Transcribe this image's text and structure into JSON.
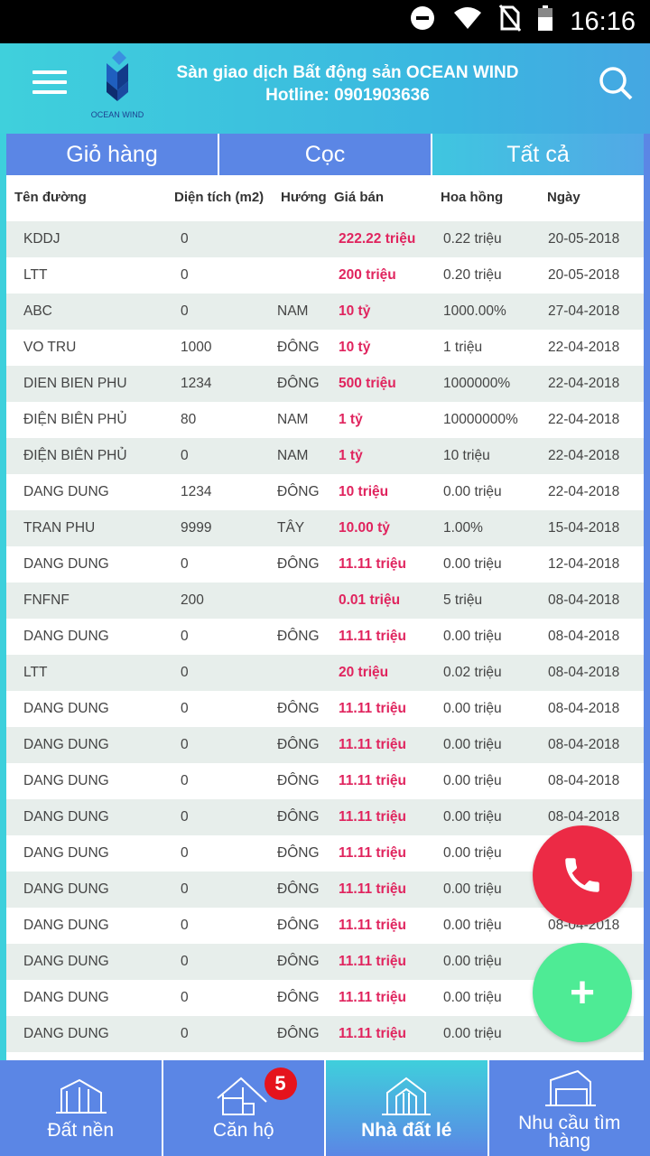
{
  "status": {
    "time": "16:16"
  },
  "header": {
    "title": "Sàn giao dịch Bất động sản OCEAN WIND",
    "hotline": "Hotline: 0901903636",
    "logo_text": "OCEAN WIND"
  },
  "tabs": [
    {
      "label": "Giỏ hàng"
    },
    {
      "label": "Cọc"
    },
    {
      "label": "Tất cả",
      "active": true
    }
  ],
  "table": {
    "headers": [
      "Tên đường",
      "Diện tích (m2)",
      "Hướng",
      "Giá bán",
      "Hoa hồng",
      "Ngày"
    ],
    "rows": [
      [
        "KDDJ",
        "0",
        "",
        "222.22 triệu",
        "0.22 triệu",
        "20-05-2018"
      ],
      [
        "LTT",
        "0",
        "",
        "200 triệu",
        "0.20 triệu",
        "20-05-2018"
      ],
      [
        "ABC",
        "0",
        "NAM",
        "10 tỷ",
        "1000.00%",
        "27-04-2018"
      ],
      [
        "VO TRU",
        "1000",
        "ĐÔNG",
        "10 tỷ",
        "1 triệu",
        "22-04-2018"
      ],
      [
        "DIEN BIEN PHU",
        "1234",
        "ĐÔNG",
        "500 triệu",
        "1000000%",
        "22-04-2018"
      ],
      [
        "ĐIỆN BIÊN PHỦ",
        "80",
        "NAM",
        "1 tỷ",
        "10000000%",
        "22-04-2018"
      ],
      [
        "ĐIỆN BIÊN PHỦ",
        "0",
        "NAM",
        "1 tỷ",
        "10 triệu",
        "22-04-2018"
      ],
      [
        "DANG DUNG",
        "1234",
        "ĐÔNG",
        "10 triệu",
        "0.00 triệu",
        "22-04-2018"
      ],
      [
        "TRAN PHU",
        "9999",
        "TÂY",
        "10.00 tỷ",
        "1.00%",
        "15-04-2018"
      ],
      [
        "DANG DUNG",
        "0",
        "ĐÔNG",
        "11.11 triệu",
        "0.00 triệu",
        "12-04-2018"
      ],
      [
        "FNFNF",
        "200",
        "",
        "0.01 triệu",
        "5 triệu",
        "08-04-2018"
      ],
      [
        "DANG DUNG",
        "0",
        "ĐÔNG",
        "11.11 triệu",
        "0.00 triệu",
        "08-04-2018"
      ],
      [
        "LTT",
        "0",
        "",
        "20 triệu",
        "0.02 triệu",
        "08-04-2018"
      ],
      [
        "DANG DUNG",
        "0",
        "ĐÔNG",
        "11.11 triệu",
        "0.00 triệu",
        "08-04-2018"
      ],
      [
        "DANG DUNG",
        "0",
        "ĐÔNG",
        "11.11 triệu",
        "0.00 triệu",
        "08-04-2018"
      ],
      [
        "DANG DUNG",
        "0",
        "ĐÔNG",
        "11.11 triệu",
        "0.00 triệu",
        "08-04-2018"
      ],
      [
        "DANG DUNG",
        "0",
        "ĐÔNG",
        "11.11 triệu",
        "0.00 triệu",
        "08-04-2018"
      ],
      [
        "DANG DUNG",
        "0",
        "ĐÔNG",
        "11.11 triệu",
        "0.00 triệu",
        ""
      ],
      [
        "DANG DUNG",
        "0",
        "ĐÔNG",
        "11.11 triệu",
        "0.00 triệu",
        ""
      ],
      [
        "DANG DUNG",
        "0",
        "ĐÔNG",
        "11.11 triệu",
        "0.00 triệu",
        "08-04-2018"
      ],
      [
        "DANG DUNG",
        "0",
        "ĐÔNG",
        "11.11 triệu",
        "0.00 triệu",
        ""
      ],
      [
        "DANG DUNG",
        "0",
        "ĐÔNG",
        "11.11 triệu",
        "0.00 triệu",
        ""
      ],
      [
        "DANG DUNG",
        "0",
        "ĐÔNG",
        "11.11 triệu",
        "0.00 triệu",
        ""
      ]
    ]
  },
  "fab": {
    "add_label": "+"
  },
  "bottom_nav": [
    {
      "label": "Đất nền"
    },
    {
      "label": "Căn hộ",
      "badge": "5"
    },
    {
      "label": "Nhà đất lé",
      "active": true
    },
    {
      "label": "Nhu cầu tìm hàng"
    }
  ],
  "colors": {
    "accent": "#5b86e5",
    "price": "#e0245e",
    "call": "#ec2a45",
    "add": "#4eeb95"
  }
}
